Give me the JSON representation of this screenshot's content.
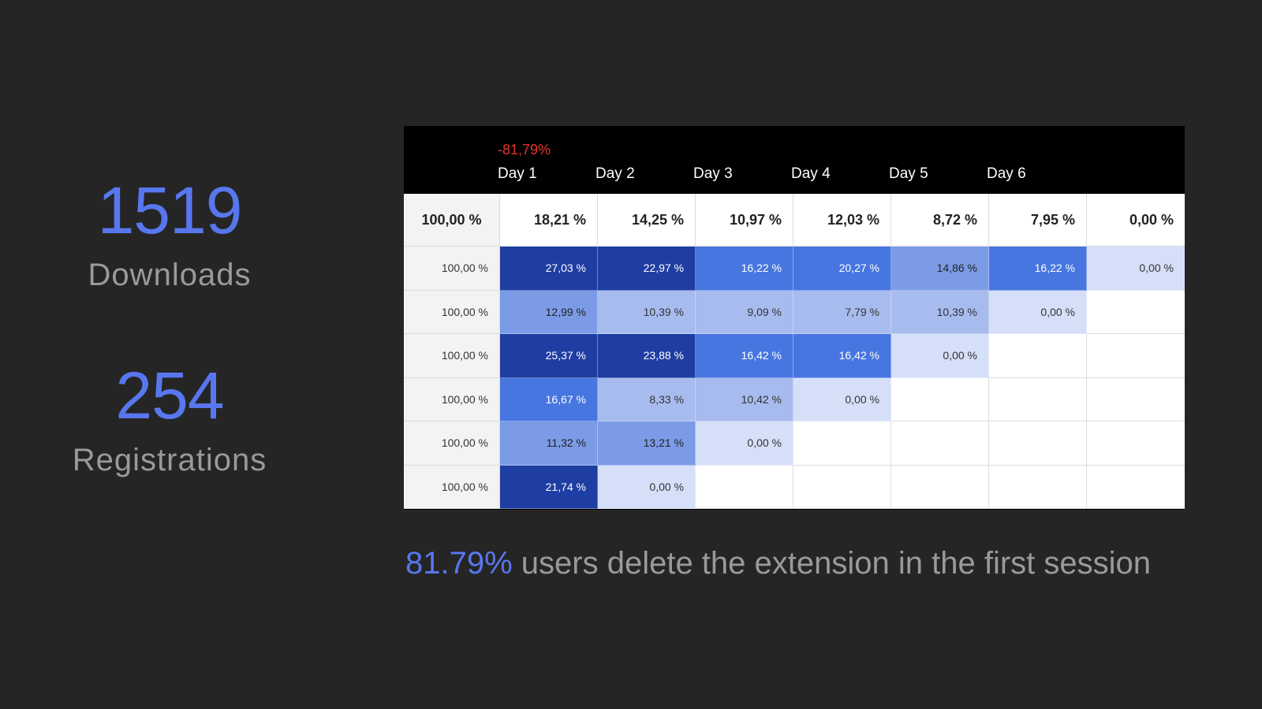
{
  "stats": {
    "downloads": {
      "value": "1519",
      "label": "Downloads"
    },
    "registrations": {
      "value": "254",
      "label": "Registrations"
    }
  },
  "chart_data": {
    "type": "heatmap",
    "delta_label": "-81,79%",
    "columns": [
      "Day 1",
      "Day 2",
      "Day 3",
      "Day 4",
      "Day 5",
      "Day 6"
    ],
    "summary": [
      "100,00 %",
      "18,21 %",
      "14,25 %",
      "10,97 %",
      "12,03 %",
      "8,72 %",
      "7,95 %",
      "0,00 %"
    ],
    "rows": [
      [
        "100,00 %",
        "27,03 %",
        "22,97 %",
        "16,22 %",
        "20,27 %",
        "14,86 %",
        "16,22 %",
        "0,00 %"
      ],
      [
        "100,00 %",
        "12,99 %",
        "10,39 %",
        "9,09 %",
        "7,79 %",
        "10,39 %",
        "0,00 %"
      ],
      [
        "100,00 %",
        "25,37 %",
        "23,88 %",
        "16,42 %",
        "16,42 %",
        "0,00 %"
      ],
      [
        "100,00 %",
        "16,67 %",
        "8,33 %",
        "10,42 %",
        "0,00 %"
      ],
      [
        "100,00 %",
        "11,32 %",
        "13,21 %",
        "0,00 %"
      ],
      [
        "100,00 %",
        "21,74 %",
        "0,00 %"
      ]
    ],
    "color_scale": {
      "empty": "#d6dff8",
      "light": "#a7bbee",
      "mid": "#7b9be6",
      "strong": "#4876e0",
      "darkest": "#1f3ea3"
    }
  },
  "conclusion": {
    "highlight": "81.79%",
    "text": " users delete the extension in the first session"
  }
}
